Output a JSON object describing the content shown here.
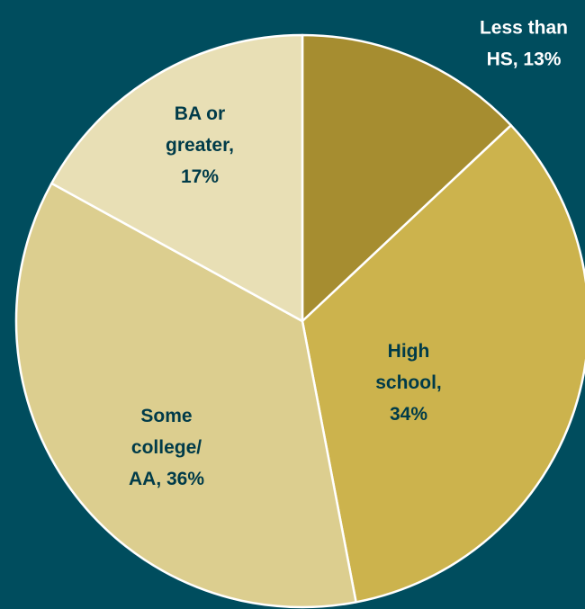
{
  "chart_data": {
    "type": "pie",
    "title": "",
    "start_angle_deg": 0,
    "direction": "clockwise",
    "background": "#004d5e",
    "slices": [
      {
        "label": "Less than HS",
        "value": 13,
        "display": [
          "Less than",
          "HS, 13%"
        ],
        "color": "#a68d30",
        "label_color": "#ffffff"
      },
      {
        "label": "High school",
        "value": 34,
        "display": [
          "High",
          "school,",
          "34%"
        ],
        "color": "#ccb34d",
        "label_color": "#003b49"
      },
      {
        "label": "Some college/AA",
        "value": 36,
        "display": [
          "Some",
          "college/",
          "AA, 36%"
        ],
        "color": "#dcce8f",
        "label_color": "#003b49"
      },
      {
        "label": "BA or greater",
        "value": 17,
        "display": [
          "BA or",
          "greater,",
          "17%"
        ],
        "color": "#e8dfb5",
        "label_color": "#003b49"
      }
    ]
  }
}
